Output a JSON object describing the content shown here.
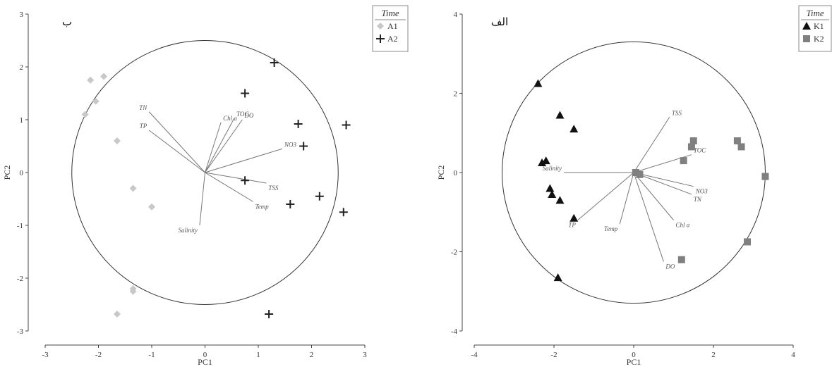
{
  "chart_data": [
    {
      "panel_label": "ب",
      "type": "scatter",
      "xlabel": "PC1",
      "ylabel": "PC2",
      "xlim": [
        -3,
        3
      ],
      "ylim": [
        -3,
        3
      ],
      "xticks": [
        -3,
        -2,
        -1,
        0,
        1,
        2,
        3
      ],
      "yticks": [
        -3,
        -2,
        -1,
        0,
        1,
        2,
        3
      ],
      "circle_radius": 2.5,
      "legend": {
        "title": "Time",
        "position": "top-right"
      },
      "series": [
        {
          "name": "A1",
          "marker": "diamond",
          "color": "#c8c8c8",
          "points": [
            [
              -2.15,
              1.75
            ],
            [
              -1.9,
              1.82
            ],
            [
              -2.05,
              1.35
            ],
            [
              -2.25,
              1.1
            ],
            [
              -1.65,
              0.6
            ],
            [
              -1.35,
              -0.3
            ],
            [
              -1.0,
              -0.65
            ],
            [
              -1.35,
              -2.25
            ],
            [
              -1.35,
              -2.2
            ],
            [
              -1.65,
              -2.68
            ]
          ]
        },
        {
          "name": "A2",
          "marker": "cross",
          "color": "#222222",
          "points": [
            [
              1.3,
              2.08
            ],
            [
              0.75,
              1.5
            ],
            [
              1.75,
              0.92
            ],
            [
              2.65,
              0.9
            ],
            [
              1.85,
              0.5
            ],
            [
              0.75,
              -0.15
            ],
            [
              2.15,
              -0.45
            ],
            [
              1.6,
              -0.6
            ],
            [
              2.6,
              -0.75
            ],
            [
              1.2,
              -2.68
            ]
          ]
        }
      ],
      "vectors": [
        {
          "label": "TN",
          "x": -1.05,
          "y": 1.15
        },
        {
          "label": "TP",
          "x": -1.05,
          "y": 0.8
        },
        {
          "label": "Chl a",
          "x": 0.3,
          "y": 0.95
        },
        {
          "label": "TOC",
          "x": 0.55,
          "y": 1.03
        },
        {
          "label": "DO",
          "x": 0.7,
          "y": 1.0
        },
        {
          "label": "NO3",
          "x": 1.45,
          "y": 0.45
        },
        {
          "label": "TSS",
          "x": 1.15,
          "y": -0.2
        },
        {
          "label": "Temp",
          "x": 0.9,
          "y": -0.55
        },
        {
          "label": "Salinity",
          "x": -0.1,
          "y": -1.0
        }
      ]
    },
    {
      "panel_label": "الف",
      "type": "scatter",
      "xlabel": "PC1",
      "ylabel": "PC2",
      "xlim": [
        -4,
        4
      ],
      "ylim": [
        -4,
        4
      ],
      "xticks": [
        -4,
        -2,
        0,
        2,
        4
      ],
      "yticks": [
        -4,
        -2,
        0,
        2,
        4
      ],
      "circle_radius": 3.3,
      "legend": {
        "title": "Time",
        "position": "top-right"
      },
      "series": [
        {
          "name": "K1",
          "marker": "triangle",
          "color": "#111111",
          "points": [
            [
              -2.4,
              2.25
            ],
            [
              -1.85,
              1.45
            ],
            [
              -1.5,
              1.1
            ],
            [
              -2.3,
              0.25
            ],
            [
              -2.2,
              0.3
            ],
            [
              -2.1,
              -0.4
            ],
            [
              -2.05,
              -0.55
            ],
            [
              -1.85,
              -0.7
            ],
            [
              -1.5,
              -1.15
            ],
            [
              -1.9,
              -2.65
            ]
          ]
        },
        {
          "name": "K2",
          "marker": "square",
          "color": "#808080",
          "points": [
            [
              1.5,
              0.8
            ],
            [
              1.45,
              0.65
            ],
            [
              1.25,
              0.3
            ],
            [
              2.6,
              0.8
            ],
            [
              2.7,
              0.65
            ],
            [
              3.3,
              -0.1
            ],
            [
              2.85,
              -1.75
            ],
            [
              1.2,
              -2.2
            ],
            [
              0.05,
              0.0
            ],
            [
              0.15,
              -0.05
            ]
          ]
        }
      ],
      "vectors": [
        {
          "label": "TSS",
          "x": 0.9,
          "y": 1.4
        },
        {
          "label": "TOC",
          "x": 1.45,
          "y": 0.45
        },
        {
          "label": "Salinity",
          "x": -1.75,
          "y": 0.0
        },
        {
          "label": "NO3",
          "x": 1.5,
          "y": -0.35
        },
        {
          "label": "TN",
          "x": 1.45,
          "y": -0.55
        },
        {
          "label": "Chl a",
          "x": 1.0,
          "y": -1.2
        },
        {
          "label": "TP",
          "x": -1.4,
          "y": -1.2
        },
        {
          "label": "Temp",
          "x": -0.35,
          "y": -1.3
        },
        {
          "label": "DO",
          "x": 0.75,
          "y": -2.25
        }
      ]
    }
  ]
}
